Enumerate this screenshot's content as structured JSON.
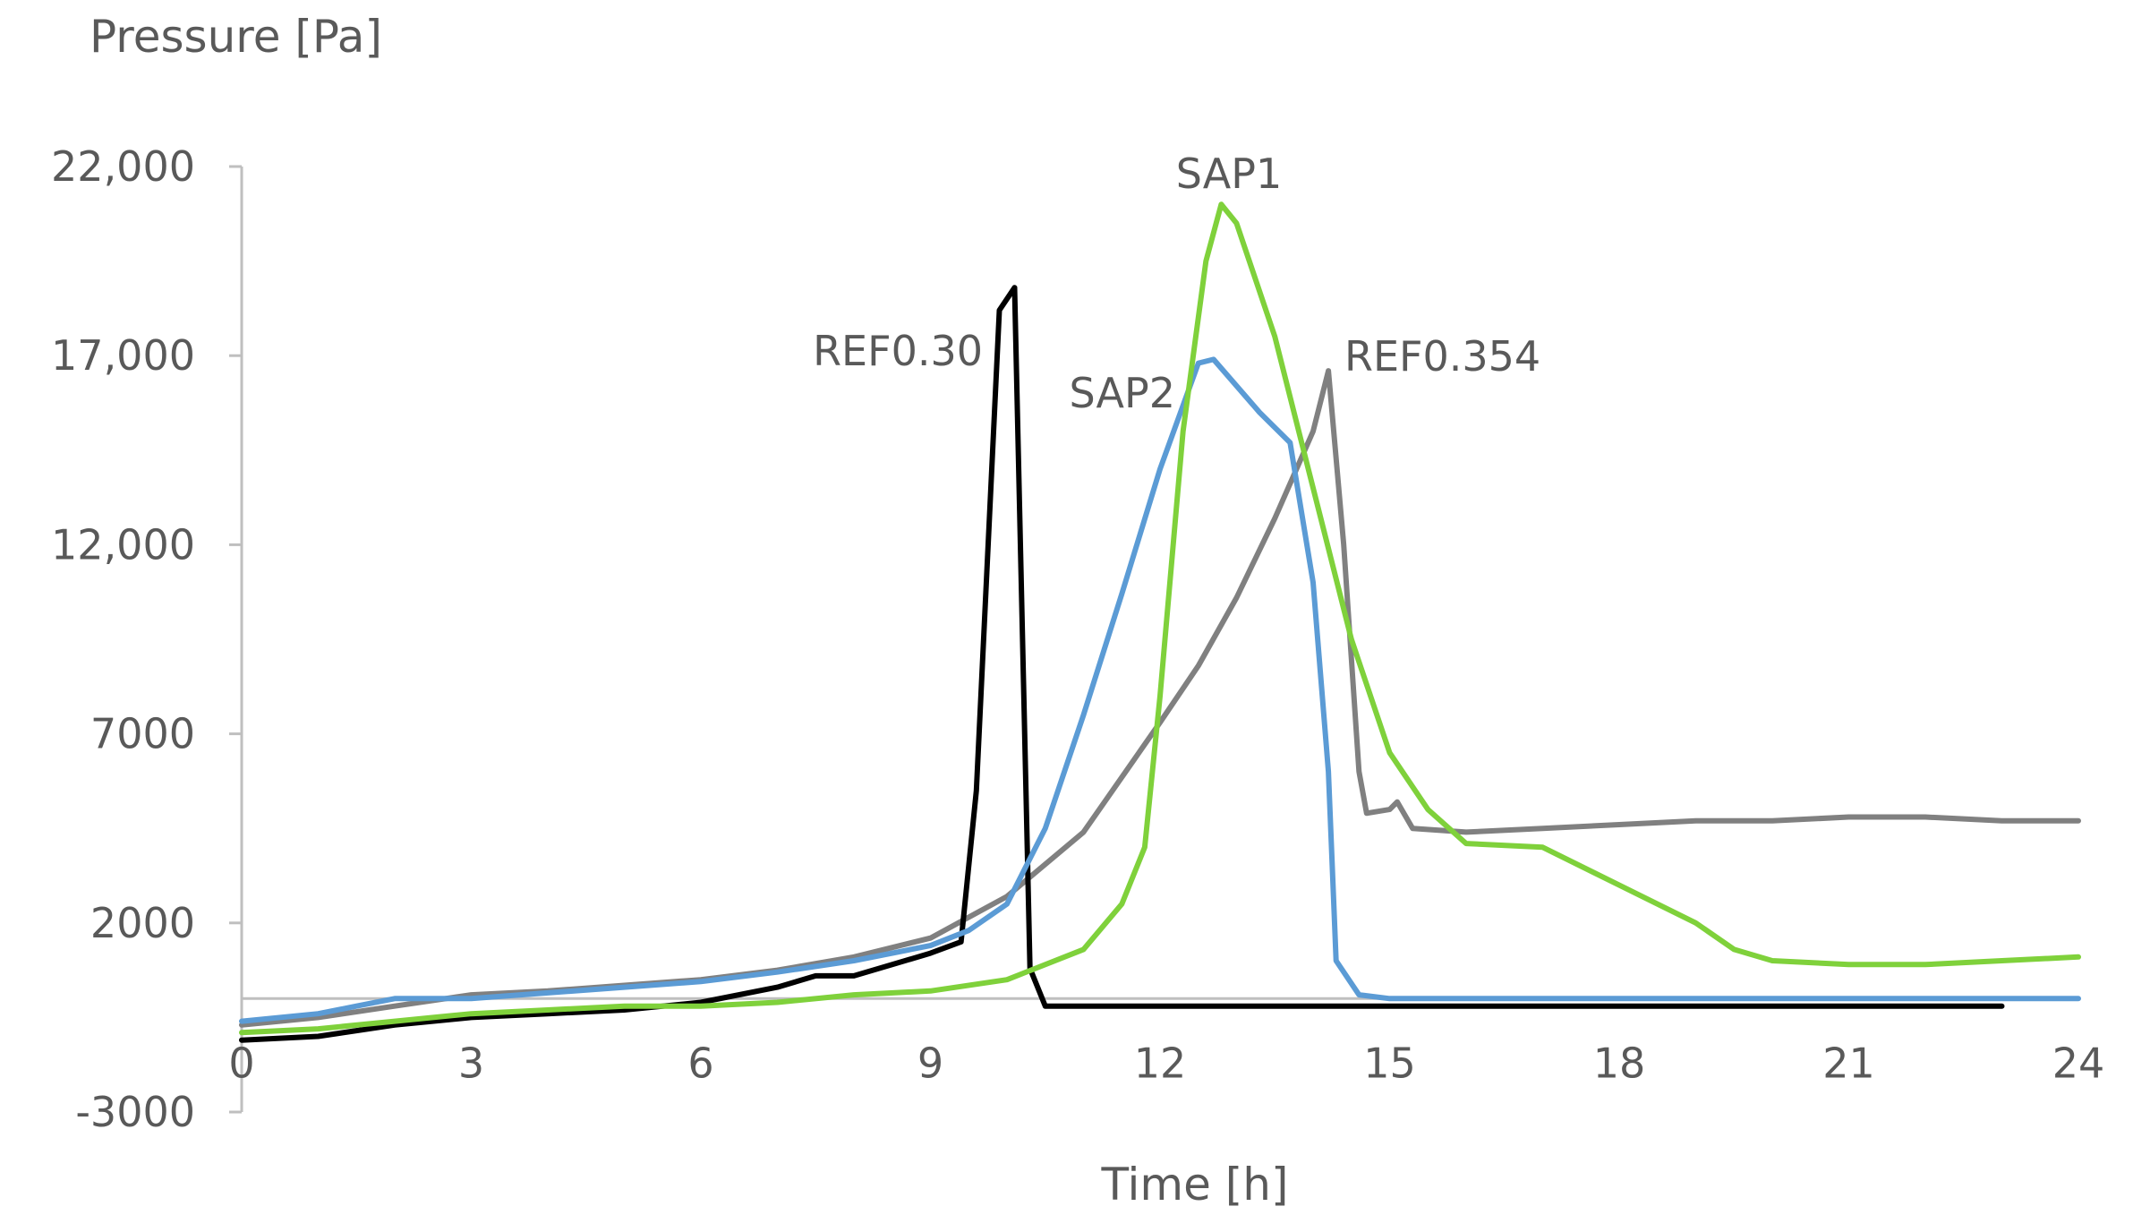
{
  "chart_data": {
    "type": "line",
    "title": "",
    "ylabel": "Pressure [Pa]",
    "xlabel": "Time [h]",
    "xlim": [
      0,
      24
    ],
    "ylim": [
      -3000,
      22000
    ],
    "x_ticks": [
      0,
      3,
      6,
      9,
      12,
      15,
      18,
      21,
      24
    ],
    "x_tick_labels": [
      "0",
      "3",
      "6",
      "9",
      "12",
      "15",
      "18",
      "21",
      "24"
    ],
    "y_ticks": [
      22000,
      17000,
      12000,
      7000,
      2000,
      -3000
    ],
    "y_tick_labels": [
      "22,000",
      "17,000",
      "12,000",
      "7000",
      "2000",
      "-3000"
    ],
    "reference_line_y": 0,
    "grid": false,
    "series": [
      {
        "name": "REF0.354",
        "color": "#808080",
        "points": [
          [
            0,
            -700
          ],
          [
            1,
            -500
          ],
          [
            2,
            -200
          ],
          [
            3,
            100
          ],
          [
            4,
            200
          ],
          [
            5,
            350
          ],
          [
            6,
            500
          ],
          [
            7,
            750
          ],
          [
            8,
            1100
          ],
          [
            9,
            1600
          ],
          [
            10,
            2700
          ],
          [
            11,
            4400
          ],
          [
            12,
            7300
          ],
          [
            12.5,
            8800
          ],
          [
            13,
            10600
          ],
          [
            13.5,
            12700
          ],
          [
            14,
            15000
          ],
          [
            14.2,
            16600
          ],
          [
            14.4,
            12000
          ],
          [
            14.6,
            6000
          ],
          [
            14.7,
            4900
          ],
          [
            15,
            5000
          ],
          [
            15.1,
            5200
          ],
          [
            15.3,
            4500
          ],
          [
            16,
            4400
          ],
          [
            17,
            4500
          ],
          [
            18,
            4600
          ],
          [
            19,
            4700
          ],
          [
            20,
            4700
          ],
          [
            21,
            4800
          ],
          [
            22,
            4800
          ],
          [
            23,
            4700
          ],
          [
            24,
            4700
          ]
        ]
      },
      {
        "name": "REF0.30",
        "color": "#000000",
        "points": [
          [
            0,
            -1100
          ],
          [
            1,
            -1000
          ],
          [
            2,
            -700
          ],
          [
            3,
            -500
          ],
          [
            4,
            -400
          ],
          [
            5,
            -300
          ],
          [
            6,
            -100
          ],
          [
            7,
            300
          ],
          [
            7.5,
            600
          ],
          [
            8,
            600
          ],
          [
            8.5,
            900
          ],
          [
            9,
            1200
          ],
          [
            9.4,
            1500
          ],
          [
            9.6,
            5500
          ],
          [
            9.9,
            18200
          ],
          [
            10.1,
            18800
          ],
          [
            10.3,
            800
          ],
          [
            10.5,
            -200
          ],
          [
            11,
            -200
          ],
          [
            13,
            -200
          ],
          [
            14,
            -200
          ],
          [
            15,
            -200
          ],
          [
            17,
            -200
          ],
          [
            19,
            -200
          ],
          [
            21,
            -200
          ],
          [
            23,
            -200
          ]
        ]
      },
      {
        "name": "SAP2",
        "color": "#5B9BD5",
        "points": [
          [
            0,
            -600
          ],
          [
            1,
            -400
          ],
          [
            1.5,
            -200
          ],
          [
            2,
            0
          ],
          [
            3,
            0
          ],
          [
            4,
            150
          ],
          [
            5,
            300
          ],
          [
            6,
            450
          ],
          [
            7,
            700
          ],
          [
            8,
            1000
          ],
          [
            9,
            1400
          ],
          [
            9.5,
            1800
          ],
          [
            10,
            2500
          ],
          [
            10.5,
            4500
          ],
          [
            11,
            7500
          ],
          [
            11.5,
            10700
          ],
          [
            12,
            14000
          ],
          [
            12.5,
            16800
          ],
          [
            12.7,
            16900
          ],
          [
            13,
            16200
          ],
          [
            13.3,
            15500
          ],
          [
            13.7,
            14700
          ],
          [
            14,
            11000
          ],
          [
            14.2,
            6000
          ],
          [
            14.3,
            1000
          ],
          [
            14.6,
            100
          ],
          [
            15,
            0
          ],
          [
            18,
            0
          ],
          [
            20,
            0
          ],
          [
            21,
            0
          ],
          [
            22,
            0
          ],
          [
            23,
            0
          ],
          [
            24,
            0
          ]
        ]
      },
      {
        "name": "SAP1",
        "color": "#7FD13B",
        "points": [
          [
            0,
            -900
          ],
          [
            1,
            -800
          ],
          [
            2,
            -600
          ],
          [
            3,
            -400
          ],
          [
            4,
            -300
          ],
          [
            5,
            -200
          ],
          [
            6,
            -200
          ],
          [
            7,
            -100
          ],
          [
            8,
            100
          ],
          [
            9,
            200
          ],
          [
            10,
            500
          ],
          [
            11,
            1300
          ],
          [
            11.5,
            2500
          ],
          [
            11.8,
            4000
          ],
          [
            12,
            8000
          ],
          [
            12.3,
            15000
          ],
          [
            12.6,
            19500
          ],
          [
            12.8,
            21000
          ],
          [
            13,
            20500
          ],
          [
            13.5,
            17500
          ],
          [
            14,
            13500
          ],
          [
            14.5,
            9500
          ],
          [
            15,
            6500
          ],
          [
            15.5,
            5000
          ],
          [
            16,
            4100
          ],
          [
            17,
            4000
          ],
          [
            18,
            3000
          ],
          [
            19,
            2000
          ],
          [
            19.5,
            1300
          ],
          [
            20,
            1000
          ],
          [
            21,
            900
          ],
          [
            22,
            900
          ],
          [
            23,
            1000
          ],
          [
            24,
            1100
          ]
        ]
      }
    ],
    "annotations": [
      {
        "text": "SAP1",
        "series": "SAP1"
      },
      {
        "text": "REF0.30",
        "series": "REF0.30"
      },
      {
        "text": "SAP2",
        "series": "SAP2"
      },
      {
        "text": "REF0.354",
        "series": "REF0.354"
      }
    ]
  }
}
